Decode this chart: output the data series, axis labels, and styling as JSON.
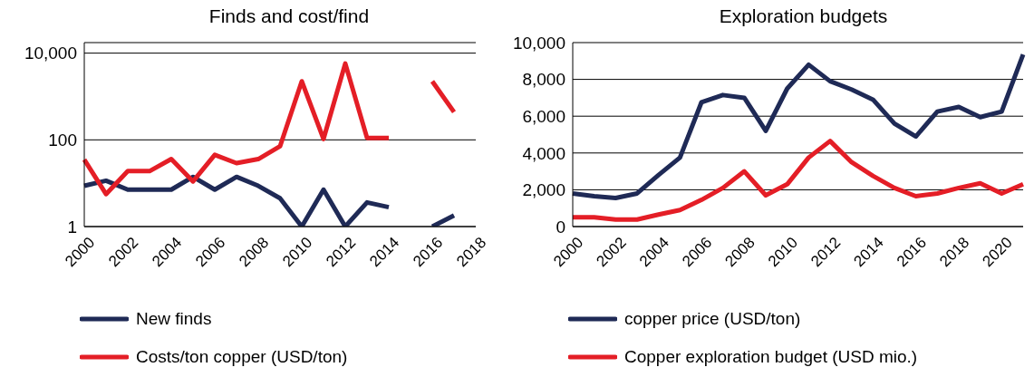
{
  "chart_data": [
    {
      "type": "line",
      "title": "Finds and cost/find",
      "categories": [
        "2000",
        null,
        "2002",
        null,
        "2004",
        null,
        "2006",
        null,
        "2008",
        null,
        "2010",
        null,
        "2012",
        null,
        "2014",
        null,
        "2016",
        null,
        "2018"
      ],
      "log": "y",
      "ylim": [
        1,
        17500
      ],
      "yticks": [
        1,
        100,
        {
          "value": 10000,
          "label": "10,000"
        }
      ],
      "grid": "y",
      "legend": "bottom",
      "marker": "none",
      "line_style": "solid",
      "series": [
        {
          "name": "New finds",
          "color": "#1f2a56",
          "values": [
            8.7,
            11.4,
            7.1,
            7.1,
            7.1,
            14,
            7.1,
            14,
            8.7,
            4.5,
            1,
            7.1,
            1,
            3.6,
            2.8,
            null,
            1,
            1.8,
            null
          ]
        },
        {
          "name": "Costs/ton copper (USD/ton)",
          "color": "#e41e26",
          "values": [
            35,
            5.6,
            19,
            19,
            36,
            11,
            45,
            29,
            36,
            71,
            2240,
            105,
            5750,
            111,
            111,
            null,
            2240,
            437,
            null
          ]
        }
      ]
    },
    {
      "type": "line",
      "title": "Exploration budgets",
      "categories": [
        "2000",
        null,
        "2002",
        null,
        "2004",
        null,
        "2006",
        null,
        "2008",
        null,
        "2010",
        null,
        "2012",
        null,
        "2014",
        null,
        "2016",
        null,
        "2018",
        null,
        "2020",
        null
      ],
      "ylim": [
        0,
        10000
      ],
      "yticks": [
        0,
        {
          "value": 2000,
          "label": "2,000"
        },
        {
          "value": 4000,
          "label": "4,000"
        },
        {
          "value": 6000,
          "label": "6,000"
        },
        {
          "value": 8000,
          "label": "8,000"
        },
        {
          "value": 10000,
          "label": "10,000"
        }
      ],
      "grid": "y",
      "legend": "bottom",
      "marker": "none",
      "line_style": "solid",
      "series": [
        {
          "name": "copper price (USD/ton)",
          "color": "#1f2a56",
          "values": [
            1800,
            1650,
            1550,
            1800,
            2800,
            3750,
            6750,
            7150,
            7000,
            5200,
            7500,
            8800,
            7900,
            7450,
            6900,
            5600,
            4900,
            6250,
            6500,
            5950,
            6250,
            9350
          ]
        },
        {
          "name": "Copper exploration budget (USD mio.)",
          "color": "#e41e26",
          "values": [
            500,
            500,
            380,
            380,
            650,
            900,
            1450,
            2100,
            3000,
            1700,
            2300,
            3750,
            4650,
            3500,
            2750,
            2100,
            1650,
            1800,
            2100,
            2350,
            1800,
            2300
          ]
        }
      ]
    }
  ]
}
